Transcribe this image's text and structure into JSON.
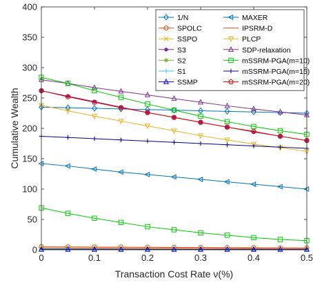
{
  "chart_data": {
    "type": "line",
    "title": "",
    "xlabel": "Transaction Cost Rate ν(%)",
    "ylabel": "Cumulative Wealth",
    "xlim": [
      0,
      0.5
    ],
    "ylim": [
      0,
      400
    ],
    "x_ticks": [
      "0",
      "0.1",
      "0.2",
      "0.3",
      "0.4",
      "0.5"
    ],
    "y_ticks": [
      "0",
      "50",
      "100",
      "150",
      "200",
      "250",
      "300",
      "350",
      "400"
    ],
    "grid": false,
    "legend_position": "top-right",
    "x": [
      0,
      0.05,
      0.1,
      0.15,
      0.2,
      0.25,
      0.3,
      0.35,
      0.4,
      0.45,
      0.5
    ],
    "series": [
      {
        "name": "1/N",
        "color": "#0072BD",
        "marker": "diamond",
        "values": [
          235,
          234,
          233,
          232,
          231,
          230,
          229,
          228,
          227,
          226,
          225
        ]
      },
      {
        "name": "MAXER",
        "color": "#0072BD",
        "marker": "triangle-left",
        "values": [
          142,
          138,
          133,
          128,
          124,
          120,
          116,
          112,
          108,
          104,
          100
        ]
      },
      {
        "name": "SPOLC",
        "color": "#D95319",
        "marker": "circle",
        "values": [
          5,
          4.8,
          4.6,
          4.4,
          4.2,
          4,
          3.8,
          3.6,
          3.4,
          3.2,
          3
        ]
      },
      {
        "name": "IPSRM-D",
        "color": "#D95319",
        "marker": "none",
        "values": [
          3,
          2.9,
          2.8,
          2.7,
          2.6,
          2.5,
          2.4,
          2.3,
          2.2,
          2.1,
          2
        ]
      },
      {
        "name": "SSPO",
        "color": "#EDB120",
        "marker": "x",
        "values": [
          2,
          1.9,
          1.8,
          1.7,
          1.6,
          1.5,
          1.4,
          1.3,
          1.2,
          1.1,
          1
        ]
      },
      {
        "name": "PLCP",
        "color": "#EDB120",
        "marker": "triangle-down",
        "values": [
          238,
          229,
          220,
          212,
          204,
          196,
          188,
          181,
          174,
          168,
          162
        ]
      },
      {
        "name": "S3",
        "color": "#7E2F8E",
        "marker": "dot",
        "values": [
          262,
          253,
          244,
          235,
          226,
          218,
          210,
          202,
          194,
          187,
          180
        ]
      },
      {
        "name": "SDP-relaxation",
        "color": "#7E2F8E",
        "marker": "triangle-up",
        "values": [
          280,
          274,
          267,
          261,
          255,
          249,
          243,
          237,
          232,
          227,
          222
        ]
      },
      {
        "name": "S2",
        "color": "#77AC30",
        "marker": "star",
        "values": [
          1.5,
          1.4,
          1.3,
          1.2,
          1.1,
          1,
          0.9,
          0.8,
          0.7,
          0.6,
          0.5
        ]
      },
      {
        "name": "mSSRM-PGA(m=10)",
        "color": "#00CC00",
        "marker": "square",
        "values": [
          284,
          274,
          262,
          251,
          240,
          230,
          220,
          211,
          203,
          196,
          190
        ]
      },
      {
        "name": "S1",
        "color": "#4DBEEE",
        "marker": "plus",
        "values": [
          1,
          0.9,
          0.8,
          0.7,
          0.6,
          0.5,
          0.4,
          0.3,
          0.2,
          0.1,
          0.1
        ]
      },
      {
        "name": "mSSRM-PGA(m=15)",
        "color": "#00008B",
        "marker": "plus",
        "values": [
          187,
          185,
          183,
          181,
          179,
          177,
          175,
          173,
          171,
          169,
          167
        ]
      },
      {
        "name": "SSMP",
        "color": "#0000FF",
        "marker": "triangle-up",
        "values": [
          0.5,
          0.5,
          0.5,
          0.5,
          0.5,
          0.5,
          0.5,
          0.5,
          0.5,
          0.5,
          0.5
        ]
      },
      {
        "name": "mSSRM-PGA(m=20)",
        "color": "#E00000",
        "marker": "circle",
        "values": [
          262,
          252,
          243,
          234,
          226,
          218,
          210,
          202,
          195,
          187,
          180
        ]
      },
      {
        "name": "",
        "color": "#00CC00",
        "marker": "square",
        "values": [
          69,
          60,
          52,
          45,
          38,
          33,
          28,
          24,
          20,
          17,
          15
        ]
      }
    ]
  }
}
